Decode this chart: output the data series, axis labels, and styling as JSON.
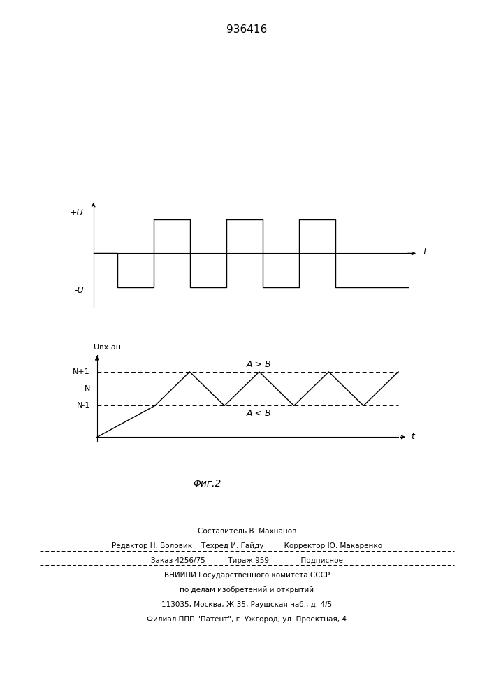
{
  "title": "936416",
  "title_fontsize": 11,
  "bg_color": "#ffffff",
  "fig1": {
    "ylabel_pos": "+U",
    "ylabel_neg": "-U",
    "xlabel": "t"
  },
  "fig2": {
    "N_level": 1.0,
    "N1_level": 1.35,
    "Nm1_level": 0.65,
    "ylabel": "Uвх.ан",
    "xlabel": "t",
    "label_AB_gt": "A > B",
    "label_AB_lt": "A < B",
    "caption": "Φиг.2"
  },
  "footer_lines": [
    "Составитель В. Махнанов",
    "Редактор Н. Воловик    Техред И. Гайду         Корректор Ю. Макаренко",
    "Заказ 4256/75          Тираж 959              Подписное",
    "ВНИИПИ Государственного комитета СССР",
    "по делам изобретений и открытий",
    "113035, Москва, Ж-35, Раушская наб., д. 4/5",
    "Филиал ППП \"Патент\", г. Ужгород, ул. Проектная, 4"
  ]
}
